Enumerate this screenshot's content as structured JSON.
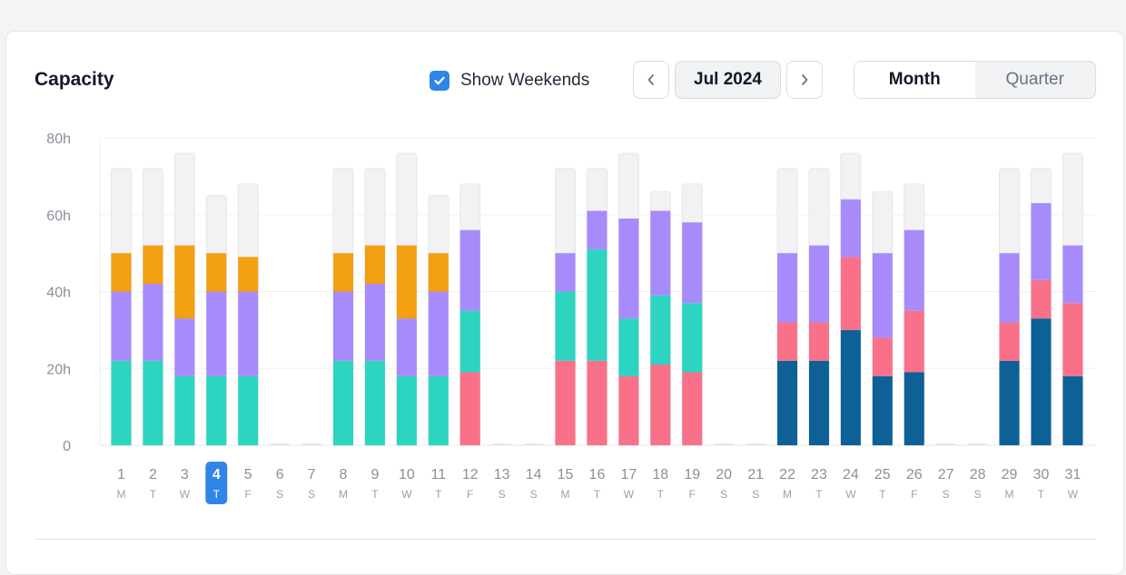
{
  "header": {
    "title": "Capacity",
    "show_weekends_label": "Show Weekends",
    "show_weekends_checked": true,
    "month_label": "Jul 2024",
    "view_modes": [
      "Month",
      "Quarter"
    ],
    "active_view": "Month"
  },
  "icons": {
    "prev": "chevron-left-icon",
    "next": "chevron-right-icon",
    "checkbox": "check-icon"
  },
  "colors": {
    "accent": "#2f86e8",
    "capacity": "#f2f2f4",
    "orange": "#f29f12",
    "purple": "#a78bfa",
    "teal": "#2dd4bf",
    "pink": "#f87189",
    "navy": "#0d6196"
  },
  "chart_data": {
    "type": "bar",
    "stacked": true,
    "y_ticks": [
      "80h",
      "60h",
      "40h",
      "20h",
      "0"
    ],
    "ylim": [
      0,
      80
    ],
    "grid": true,
    "selected_day": 4,
    "days": [
      {
        "d": "1",
        "w": "M",
        "cap": 72,
        "segs": [
          [
            "teal",
            22
          ],
          [
            "purple",
            18
          ],
          [
            "orange",
            10
          ]
        ]
      },
      {
        "d": "2",
        "w": "T",
        "cap": 72,
        "segs": [
          [
            "teal",
            22
          ],
          [
            "purple",
            20
          ],
          [
            "orange",
            10
          ]
        ]
      },
      {
        "d": "3",
        "w": "W",
        "cap": 76,
        "segs": [
          [
            "teal",
            18
          ],
          [
            "purple",
            15
          ],
          [
            "orange",
            19
          ]
        ]
      },
      {
        "d": "4",
        "w": "T",
        "cap": 65,
        "segs": [
          [
            "teal",
            18
          ],
          [
            "purple",
            22
          ],
          [
            "orange",
            10
          ]
        ]
      },
      {
        "d": "5",
        "w": "F",
        "cap": 68,
        "segs": [
          [
            "teal",
            18
          ],
          [
            "purple",
            22
          ],
          [
            "orange",
            9
          ]
        ]
      },
      {
        "d": "6",
        "w": "S",
        "cap": 0,
        "segs": []
      },
      {
        "d": "7",
        "w": "S",
        "cap": 0,
        "segs": []
      },
      {
        "d": "8",
        "w": "M",
        "cap": 72,
        "segs": [
          [
            "teal",
            22
          ],
          [
            "purple",
            18
          ],
          [
            "orange",
            10
          ]
        ]
      },
      {
        "d": "9",
        "w": "T",
        "cap": 72,
        "segs": [
          [
            "teal",
            22
          ],
          [
            "purple",
            20
          ],
          [
            "orange",
            10
          ]
        ]
      },
      {
        "d": "10",
        "w": "W",
        "cap": 76,
        "segs": [
          [
            "teal",
            18
          ],
          [
            "purple",
            15
          ],
          [
            "orange",
            19
          ]
        ]
      },
      {
        "d": "11",
        "w": "T",
        "cap": 65,
        "segs": [
          [
            "teal",
            18
          ],
          [
            "purple",
            22
          ],
          [
            "orange",
            10
          ]
        ]
      },
      {
        "d": "12",
        "w": "F",
        "cap": 68,
        "segs": [
          [
            "pink",
            19
          ],
          [
            "teal",
            16
          ],
          [
            "purple",
            21
          ]
        ]
      },
      {
        "d": "13",
        "w": "S",
        "cap": 0,
        "segs": []
      },
      {
        "d": "14",
        "w": "S",
        "cap": 0,
        "segs": []
      },
      {
        "d": "15",
        "w": "M",
        "cap": 72,
        "segs": [
          [
            "pink",
            22
          ],
          [
            "teal",
            18
          ],
          [
            "purple",
            10
          ]
        ]
      },
      {
        "d": "16",
        "w": "T",
        "cap": 72,
        "segs": [
          [
            "pink",
            22
          ],
          [
            "teal",
            29
          ],
          [
            "purple",
            10
          ]
        ]
      },
      {
        "d": "17",
        "w": "W",
        "cap": 76,
        "segs": [
          [
            "pink",
            18
          ],
          [
            "teal",
            15
          ],
          [
            "purple",
            26
          ]
        ]
      },
      {
        "d": "18",
        "w": "T",
        "cap": 66,
        "segs": [
          [
            "pink",
            21
          ],
          [
            "teal",
            18
          ],
          [
            "purple",
            22
          ]
        ]
      },
      {
        "d": "19",
        "w": "F",
        "cap": 68,
        "segs": [
          [
            "pink",
            19
          ],
          [
            "teal",
            18
          ],
          [
            "purple",
            21
          ]
        ]
      },
      {
        "d": "20",
        "w": "S",
        "cap": 0,
        "segs": []
      },
      {
        "d": "21",
        "w": "S",
        "cap": 0,
        "segs": []
      },
      {
        "d": "22",
        "w": "M",
        "cap": 72,
        "segs": [
          [
            "navy",
            22
          ],
          [
            "pink",
            10
          ],
          [
            "purple",
            18
          ]
        ]
      },
      {
        "d": "23",
        "w": "T",
        "cap": 72,
        "segs": [
          [
            "navy",
            22
          ],
          [
            "pink",
            10
          ],
          [
            "purple",
            20
          ]
        ]
      },
      {
        "d": "24",
        "w": "W",
        "cap": 76,
        "segs": [
          [
            "navy",
            30
          ],
          [
            "pink",
            19
          ],
          [
            "purple",
            15
          ]
        ]
      },
      {
        "d": "25",
        "w": "T",
        "cap": 66,
        "segs": [
          [
            "navy",
            18
          ],
          [
            "pink",
            10
          ],
          [
            "purple",
            22
          ]
        ]
      },
      {
        "d": "26",
        "w": "F",
        "cap": 68,
        "segs": [
          [
            "navy",
            19
          ],
          [
            "pink",
            16
          ],
          [
            "purple",
            21
          ]
        ]
      },
      {
        "d": "27",
        "w": "S",
        "cap": 0,
        "segs": []
      },
      {
        "d": "28",
        "w": "S",
        "cap": 0,
        "segs": []
      },
      {
        "d": "29",
        "w": "M",
        "cap": 72,
        "segs": [
          [
            "navy",
            22
          ],
          [
            "pink",
            10
          ],
          [
            "purple",
            18
          ]
        ]
      },
      {
        "d": "30",
        "w": "T",
        "cap": 72,
        "segs": [
          [
            "navy",
            33
          ],
          [
            "pink",
            10
          ],
          [
            "purple",
            20
          ]
        ]
      },
      {
        "d": "31",
        "w": "W",
        "cap": 76,
        "segs": [
          [
            "navy",
            18
          ],
          [
            "pink",
            19
          ],
          [
            "purple",
            15
          ]
        ]
      }
    ]
  }
}
